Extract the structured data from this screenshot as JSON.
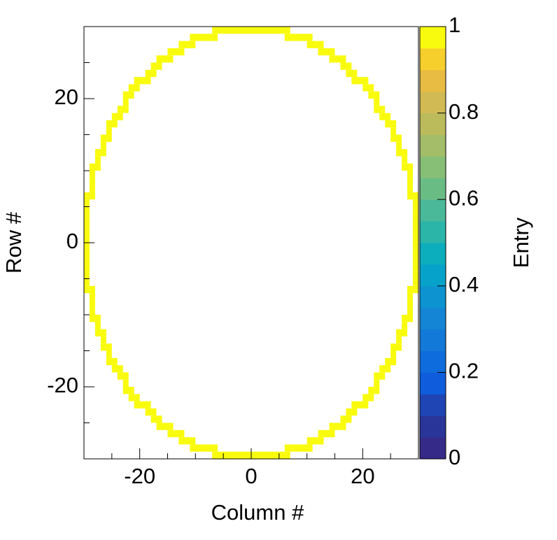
{
  "chart_data": {
    "type": "heatmap",
    "xlabel": "Column #",
    "ylabel": "Row #",
    "zlabel": "Entry",
    "xlim": [
      -30,
      30
    ],
    "ylim": [
      -30,
      30
    ],
    "zlim": [
      0,
      1
    ],
    "xticks": [
      -20,
      0,
      20
    ],
    "yticks": [
      -20,
      0,
      20
    ],
    "xminorticks": [
      -25,
      -15,
      -10,
      -5,
      5,
      10,
      15,
      25
    ],
    "yminorticks": [
      -25,
      -15,
      -10,
      -5,
      5,
      10,
      15,
      25
    ],
    "zticks": [
      0,
      0.2,
      0.4,
      0.6,
      0.8,
      1
    ],
    "palette": [
      "#352a87",
      "#2a3599",
      "#1f45b4",
      "#0f5cdd",
      "#0f6cdc",
      "#1379d8",
      "#1485d4",
      "#0c93d0",
      "#06a2c9",
      "#0cadbd",
      "#2bb5a9",
      "#4ab999",
      "#6abc85",
      "#87bf77",
      "#a3bd68",
      "#bbbb5c",
      "#d1ba54",
      "#e8bb42",
      "#f7cf2c",
      "#f9fb0e"
    ],
    "segments": [
      {
        "row": -30,
        "x0": -7,
        "x1": 7,
        "value": 1
      },
      {
        "row": -29,
        "x0": -11,
        "x1": -6,
        "value": 1
      },
      {
        "row": -29,
        "x0": 6,
        "x1": 11,
        "value": 1
      },
      {
        "row": -28,
        "x0": -13,
        "x1": -10,
        "value": 1
      },
      {
        "row": -28,
        "x0": 10,
        "x1": 13,
        "value": 1
      },
      {
        "row": -27,
        "x0": -15,
        "x1": -12,
        "value": 1
      },
      {
        "row": -27,
        "x0": 12,
        "x1": 15,
        "value": 1
      },
      {
        "row": -26,
        "x0": -17,
        "x1": -14,
        "value": 1
      },
      {
        "row": -26,
        "x0": 14,
        "x1": 17,
        "value": 1
      },
      {
        "row": -25,
        "x0": -18,
        "x1": -16,
        "value": 1
      },
      {
        "row": -25,
        "x0": 16,
        "x1": 18,
        "value": 1
      },
      {
        "row": -24,
        "x0": -19,
        "x1": -17,
        "value": 1
      },
      {
        "row": -24,
        "x0": 17,
        "x1": 19,
        "value": 1
      },
      {
        "row": -23,
        "x0": -21,
        "x1": -18,
        "value": 1
      },
      {
        "row": -23,
        "x0": 18,
        "x1": 21,
        "value": 1
      },
      {
        "row": -22,
        "x0": -22,
        "x1": -20,
        "value": 1
      },
      {
        "row": -22,
        "x0": 20,
        "x1": 22,
        "value": 1
      },
      {
        "row": -21,
        "x0": -23,
        "x1": -21,
        "value": 1
      },
      {
        "row": -21,
        "x0": 21,
        "x1": 23,
        "value": 1
      },
      {
        "row": -20,
        "x0": -23,
        "x1": -22,
        "value": 1
      },
      {
        "row": -20,
        "x0": 22,
        "x1": 23,
        "value": 1
      },
      {
        "row": -19,
        "x0": -24,
        "x1": -22,
        "value": 1
      },
      {
        "row": -19,
        "x0": 22,
        "x1": 24,
        "value": 1
      },
      {
        "row": -18,
        "x0": -25,
        "x1": -23,
        "value": 1
      },
      {
        "row": -18,
        "x0": 23,
        "x1": 25,
        "value": 1
      },
      {
        "row": -17,
        "x0": -26,
        "x1": -24,
        "value": 1
      },
      {
        "row": -17,
        "x0": 24,
        "x1": 26,
        "value": 1
      },
      {
        "row": -16,
        "x0": -26,
        "x1": -25,
        "value": 1
      },
      {
        "row": -16,
        "x0": 25,
        "x1": 26,
        "value": 1
      },
      {
        "row": -15,
        "x0": -27,
        "x1": -25,
        "value": 1
      },
      {
        "row": -15,
        "x0": 25,
        "x1": 27,
        "value": 1
      },
      {
        "row": -14,
        "x0": -27,
        "x1": -26,
        "value": 1
      },
      {
        "row": -14,
        "x0": 26,
        "x1": 27,
        "value": 1
      },
      {
        "row": -13,
        "x0": -28,
        "x1": -26,
        "value": 1
      },
      {
        "row": -13,
        "x0": 26,
        "x1": 28,
        "value": 1
      },
      {
        "row": -12,
        "x0": -28,
        "x1": -27,
        "value": 1
      },
      {
        "row": -12,
        "x0": 27,
        "x1": 28,
        "value": 1
      },
      {
        "row": -11,
        "x0": -29,
        "x1": -27,
        "value": 1
      },
      {
        "row": -11,
        "x0": 27,
        "x1": 29,
        "value": 1
      },
      {
        "row": -10,
        "x0": -29,
        "x1": -28,
        "value": 1
      },
      {
        "row": -10,
        "x0": 28,
        "x1": 29,
        "value": 1
      },
      {
        "row": -9,
        "x0": -29,
        "x1": -28,
        "value": 1
      },
      {
        "row": -9,
        "x0": 28,
        "x1": 29,
        "value": 1
      },
      {
        "row": -8,
        "x0": -29,
        "x1": -28,
        "value": 1
      },
      {
        "row": -8,
        "x0": 28,
        "x1": 29,
        "value": 1
      },
      {
        "row": -7,
        "x0": -30,
        "x1": -28,
        "value": 1
      },
      {
        "row": -7,
        "x0": 28,
        "x1": 30,
        "value": 1
      },
      {
        "row": -6,
        "x0": -30,
        "x1": -29,
        "value": 1
      },
      {
        "row": -6,
        "x0": 29,
        "x1": 30,
        "value": 1
      },
      {
        "row": -5,
        "x0": -30,
        "x1": -29,
        "value": 1
      },
      {
        "row": -5,
        "x0": 29,
        "x1": 30,
        "value": 1
      },
      {
        "row": -4,
        "x0": -30,
        "x1": -29,
        "value": 1
      },
      {
        "row": -4,
        "x0": 29,
        "x1": 30,
        "value": 1
      },
      {
        "row": -3,
        "x0": -30,
        "x1": -29,
        "value": 1
      },
      {
        "row": -3,
        "x0": 29,
        "x1": 30,
        "value": 1
      },
      {
        "row": -2,
        "x0": -30,
        "x1": -29,
        "value": 1
      },
      {
        "row": -2,
        "x0": 29,
        "x1": 30,
        "value": 1
      },
      {
        "row": -1,
        "x0": -30,
        "x1": -29,
        "value": 1
      },
      {
        "row": -1,
        "x0": 29,
        "x1": 30,
        "value": 1
      },
      {
        "row": 0,
        "x0": -30,
        "x1": -29,
        "value": 1
      },
      {
        "row": 0,
        "x0": 29,
        "x1": 30,
        "value": 1
      },
      {
        "row": 1,
        "x0": -30,
        "x1": -29,
        "value": 1
      },
      {
        "row": 1,
        "x0": 29,
        "x1": 30,
        "value": 1
      },
      {
        "row": 2,
        "x0": -30,
        "x1": -29,
        "value": 1
      },
      {
        "row": 2,
        "x0": 29,
        "x1": 30,
        "value": 1
      },
      {
        "row": 3,
        "x0": -30,
        "x1": -29,
        "value": 1
      },
      {
        "row": 3,
        "x0": 29,
        "x1": 30,
        "value": 1
      },
      {
        "row": 4,
        "x0": -30,
        "x1": -29,
        "value": 1
      },
      {
        "row": 4,
        "x0": 29,
        "x1": 30,
        "value": 1
      },
      {
        "row": 5,
        "x0": -30,
        "x1": -29,
        "value": 1
      },
      {
        "row": 5,
        "x0": 29,
        "x1": 30,
        "value": 1
      },
      {
        "row": 6,
        "x0": -30,
        "x1": -28,
        "value": 1
      },
      {
        "row": 6,
        "x0": 28,
        "x1": 30,
        "value": 1
      },
      {
        "row": 7,
        "x0": -29,
        "x1": -28,
        "value": 1
      },
      {
        "row": 7,
        "x0": 28,
        "x1": 29,
        "value": 1
      },
      {
        "row": 8,
        "x0": -29,
        "x1": -28,
        "value": 1
      },
      {
        "row": 8,
        "x0": 28,
        "x1": 29,
        "value": 1
      },
      {
        "row": 9,
        "x0": -29,
        "x1": -28,
        "value": 1
      },
      {
        "row": 9,
        "x0": 28,
        "x1": 29,
        "value": 1
      },
      {
        "row": 10,
        "x0": -29,
        "x1": -27,
        "value": 1
      },
      {
        "row": 10,
        "x0": 27,
        "x1": 29,
        "value": 1
      },
      {
        "row": 11,
        "x0": -28,
        "x1": -27,
        "value": 1
      },
      {
        "row": 11,
        "x0": 27,
        "x1": 28,
        "value": 1
      },
      {
        "row": 12,
        "x0": -28,
        "x1": -26,
        "value": 1
      },
      {
        "row": 12,
        "x0": 26,
        "x1": 28,
        "value": 1
      },
      {
        "row": 13,
        "x0": -27,
        "x1": -26,
        "value": 1
      },
      {
        "row": 13,
        "x0": 26,
        "x1": 27,
        "value": 1
      },
      {
        "row": 14,
        "x0": -27,
        "x1": -25,
        "value": 1
      },
      {
        "row": 14,
        "x0": 25,
        "x1": 27,
        "value": 1
      },
      {
        "row": 15,
        "x0": -26,
        "x1": -25,
        "value": 1
      },
      {
        "row": 15,
        "x0": 25,
        "x1": 26,
        "value": 1
      },
      {
        "row": 16,
        "x0": -26,
        "x1": -24,
        "value": 1
      },
      {
        "row": 16,
        "x0": 24,
        "x1": 26,
        "value": 1
      },
      {
        "row": 17,
        "x0": -25,
        "x1": -23,
        "value": 1
      },
      {
        "row": 17,
        "x0": 23,
        "x1": 25,
        "value": 1
      },
      {
        "row": 18,
        "x0": -24,
        "x1": -22,
        "value": 1
      },
      {
        "row": 18,
        "x0": 22,
        "x1": 24,
        "value": 1
      },
      {
        "row": 19,
        "x0": -23,
        "x1": -22,
        "value": 1
      },
      {
        "row": 19,
        "x0": 22,
        "x1": 23,
        "value": 1
      },
      {
        "row": 20,
        "x0": -23,
        "x1": -21,
        "value": 1
      },
      {
        "row": 20,
        "x0": 21,
        "x1": 23,
        "value": 1
      },
      {
        "row": 21,
        "x0": -22,
        "x1": -20,
        "value": 1
      },
      {
        "row": 21,
        "x0": 20,
        "x1": 22,
        "value": 1
      },
      {
        "row": 22,
        "x0": -21,
        "x1": -18,
        "value": 1
      },
      {
        "row": 22,
        "x0": 18,
        "x1": 21,
        "value": 1
      },
      {
        "row": 23,
        "x0": -19,
        "x1": -17,
        "value": 1
      },
      {
        "row": 23,
        "x0": 17,
        "x1": 19,
        "value": 1
      },
      {
        "row": 24,
        "x0": -18,
        "x1": -16,
        "value": 1
      },
      {
        "row": 24,
        "x0": 16,
        "x1": 18,
        "value": 1
      },
      {
        "row": 25,
        "x0": -17,
        "x1": -14,
        "value": 1
      },
      {
        "row": 25,
        "x0": 14,
        "x1": 17,
        "value": 1
      },
      {
        "row": 26,
        "x0": -15,
        "x1": -12,
        "value": 1
      },
      {
        "row": 26,
        "x0": 12,
        "x1": 15,
        "value": 1
      },
      {
        "row": 27,
        "x0": -13,
        "x1": -10,
        "value": 1
      },
      {
        "row": 27,
        "x0": 10,
        "x1": 13,
        "value": 1
      },
      {
        "row": 28,
        "x0": -11,
        "x1": -6,
        "value": 1
      },
      {
        "row": 28,
        "x0": 6,
        "x1": 11,
        "value": 1
      },
      {
        "row": 29,
        "x0": -7,
        "x1": 7,
        "value": 1
      }
    ]
  }
}
